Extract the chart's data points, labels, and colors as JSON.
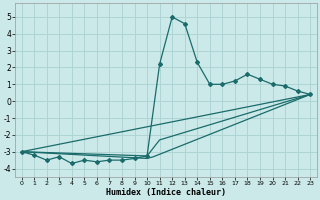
{
  "title": "",
  "xlabel": "Humidex (Indice chaleur)",
  "xlim": [
    -0.5,
    23.5
  ],
  "ylim": [
    -4.5,
    5.8
  ],
  "xticks": [
    0,
    1,
    2,
    3,
    4,
    5,
    6,
    7,
    8,
    9,
    10,
    11,
    12,
    13,
    14,
    15,
    16,
    17,
    18,
    19,
    20,
    21,
    22,
    23
  ],
  "yticks": [
    -4,
    -3,
    -2,
    -1,
    0,
    1,
    2,
    3,
    4,
    5
  ],
  "bg_color": "#cce9e9",
  "line_color": "#1a6b6b",
  "grid_color": "#aed4d4",
  "line1_x": [
    0,
    1,
    2,
    3,
    4,
    5,
    6,
    7,
    8,
    9,
    10,
    11,
    12,
    13,
    14,
    15,
    16,
    17,
    18,
    19,
    20,
    21,
    22,
    23
  ],
  "line1_y": [
    -3.0,
    -3.2,
    -3.5,
    -3.3,
    -3.7,
    -3.5,
    -3.6,
    -3.5,
    -3.5,
    -3.4,
    -3.25,
    2.2,
    5.0,
    4.6,
    2.3,
    1.0,
    1.0,
    1.2,
    1.6,
    1.3,
    1.0,
    0.9,
    0.6,
    0.4
  ],
  "line2_x": [
    0,
    23
  ],
  "line2_y": [
    -3.0,
    0.4
  ],
  "line3_x": [
    0,
    10,
    11,
    23
  ],
  "line3_y": [
    -3.0,
    -3.25,
    -2.3,
    0.4
  ],
  "line4_x": [
    0,
    10,
    10.5,
    23
  ],
  "line4_y": [
    -3.0,
    -3.4,
    -3.3,
    0.4
  ]
}
